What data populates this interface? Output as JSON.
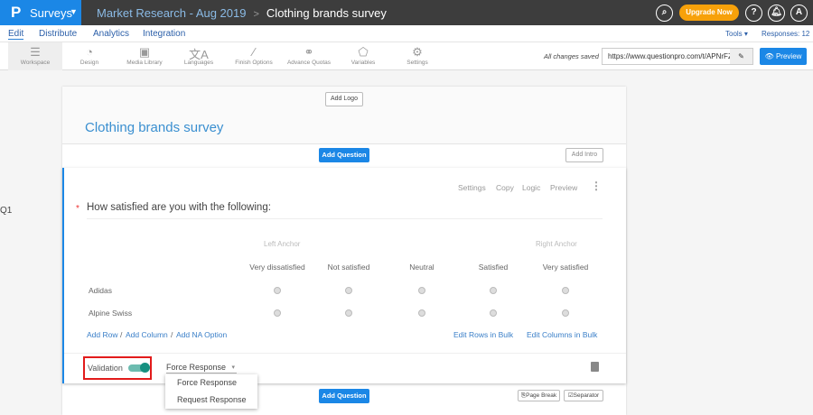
{
  "header": {
    "logo": "P",
    "app": "Surveys",
    "breadcrumb_parent": "Market Research - Aug 2019",
    "breadcrumb_sep": ">",
    "breadcrumb_current": "Clothing brands survey",
    "upgrade": "Upgrade Now",
    "help": "?",
    "avatar": "A"
  },
  "nav": {
    "tabs": [
      "Edit",
      "Distribute",
      "Analytics",
      "Integration"
    ],
    "active": "Edit",
    "tools": "Tools ▾",
    "responses": "Responses: 12"
  },
  "toolbar": {
    "items": [
      {
        "label": "Workspace",
        "icon": "list-icon"
      },
      {
        "label": "Design",
        "icon": "palette-icon"
      },
      {
        "label": "Media Library",
        "icon": "image-icon"
      },
      {
        "label": "Languages",
        "icon": "translate-icon"
      },
      {
        "label": "Finish Options",
        "icon": "wand-icon"
      },
      {
        "label": "Advance Quotas",
        "icon": "chain-icon"
      },
      {
        "label": "Variables",
        "icon": "tag-icon"
      },
      {
        "label": "Settings",
        "icon": "gear-icon"
      }
    ],
    "saved": "All changes saved",
    "url": "https://www.questionpro.com/t/APNrFZ",
    "preview": "Preview"
  },
  "survey": {
    "add_logo": "Add Logo",
    "title": "Clothing brands survey",
    "add_question": "Add Question",
    "add_intro": "Add Intro",
    "page_break": "Page Break",
    "separator": "Separator"
  },
  "question": {
    "number": "Q1",
    "text": "How satisfied are you with the following:",
    "actions": [
      "Settings",
      "Copy",
      "Logic",
      "Preview"
    ],
    "left_anchor": "Left Anchor",
    "right_anchor": "Right Anchor",
    "columns": [
      "Very dissatisfied",
      "Not satisfied",
      "Neutral",
      "Satisfied",
      "Very satisfied"
    ],
    "rows": [
      "Adidas",
      "Alpine Swiss"
    ],
    "add_row": "Add Row",
    "add_column": "Add Column",
    "add_na": "Add NA Option",
    "slash": "/",
    "edit_rows": "Edit Rows in Bulk",
    "edit_columns": "Edit Columns in Bulk",
    "validation": "Validation",
    "validation_on": true,
    "validation_type": "Force Response",
    "options": [
      "Force Response",
      "Request Response"
    ]
  },
  "colors": {
    "brand": "#1b87e6",
    "upgrade": "#f7a10a",
    "toggle": "#169080",
    "highlight": "#e21b1b"
  }
}
